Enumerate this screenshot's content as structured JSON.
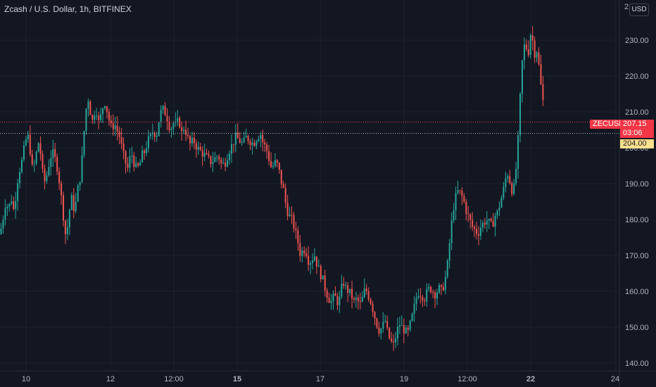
{
  "header": {
    "title": "Zcash / U.S. Dollar, 1h, BITFINEX",
    "currency_button": "USD",
    "top_axis_partial": "2"
  },
  "price_tags": {
    "symbol": "ZECUSD",
    "last_price": "207.15",
    "countdown": "03:06",
    "reference_price": "204.00"
  },
  "colors": {
    "background": "#131722",
    "up": "#26a69a",
    "down": "#ef5350",
    "grid": "#1e222d",
    "last_price_line": "#f23645",
    "reference_line": "#b2b5be"
  },
  "chart_data": {
    "type": "candlestick",
    "y_axis": {
      "ticks": [
        "140.00",
        "150.00",
        "160.00",
        "170.00",
        "180.00",
        "190.00",
        "200.00",
        "210.00",
        "220.00",
        "230.00"
      ],
      "range": [
        138.5,
        239.5
      ]
    },
    "x_axis": {
      "ticks": [
        {
          "label": "10",
          "bold": false
        },
        {
          "label": "12",
          "bold": false
        },
        {
          "label": "12:00",
          "bold": false
        },
        {
          "label": "15",
          "bold": true
        },
        {
          "label": "17",
          "bold": false
        },
        {
          "label": "19",
          "bold": false
        },
        {
          "label": "12:00",
          "bold": false
        },
        {
          "label": "22",
          "bold": true
        },
        {
          "label": "24",
          "bold": false
        }
      ]
    },
    "last_price": 207.15,
    "reference_price": 204.0,
    "series_path": [
      [
        0,
        176
      ],
      [
        4,
        180
      ],
      [
        8,
        185
      ],
      [
        12,
        183
      ],
      [
        16,
        186
      ],
      [
        20,
        182
      ],
      [
        24,
        190
      ],
      [
        28,
        194
      ],
      [
        32,
        197
      ],
      [
        36,
        202
      ],
      [
        40,
        203
      ],
      [
        43,
        199
      ],
      [
        46,
        194
      ],
      [
        50,
        196
      ],
      [
        54,
        202
      ],
      [
        58,
        198
      ],
      [
        62,
        190
      ],
      [
        66,
        192
      ],
      [
        70,
        196
      ],
      [
        74,
        199
      ],
      [
        78,
        197
      ],
      [
        82,
        194
      ],
      [
        86,
        188
      ],
      [
        90,
        181
      ],
      [
        93,
        176
      ],
      [
        96,
        178
      ],
      [
        99,
        183
      ],
      [
        102,
        186
      ],
      [
        106,
        182
      ],
      [
        110,
        188
      ],
      [
        114,
        192
      ],
      [
        117,
        198
      ],
      [
        120,
        206
      ],
      [
        123,
        212
      ],
      [
        126,
        214
      ],
      [
        129,
        209
      ],
      [
        132,
        207
      ],
      [
        135,
        211
      ],
      [
        138,
        210
      ],
      [
        141,
        206
      ],
      [
        144,
        210
      ],
      [
        147,
        212
      ],
      [
        150,
        213
      ],
      [
        153,
        209
      ],
      [
        156,
        207
      ],
      [
        159,
        205
      ],
      [
        162,
        207
      ],
      [
        166,
        205
      ],
      [
        170,
        203
      ],
      [
        174,
        199
      ],
      [
        178,
        196
      ],
      [
        182,
        194
      ],
      [
        186,
        199
      ],
      [
        190,
        196
      ],
      [
        194,
        194
      ],
      [
        198,
        195
      ],
      [
        202,
        198
      ],
      [
        206,
        199
      ],
      [
        210,
        202
      ],
      [
        214,
        203
      ],
      [
        218,
        205
      ],
      [
        222,
        203
      ],
      [
        226,
        208
      ],
      [
        230,
        211
      ],
      [
        234,
        210
      ],
      [
        238,
        208
      ],
      [
        242,
        205
      ],
      [
        246,
        207
      ],
      [
        250,
        206
      ],
      [
        254,
        208
      ],
      [
        258,
        204
      ],
      [
        262,
        206
      ],
      [
        266,
        203
      ],
      [
        270,
        201
      ],
      [
        275,
        202
      ],
      [
        280,
        200
      ],
      [
        285,
        199
      ],
      [
        290,
        198
      ],
      [
        295,
        197
      ],
      [
        300,
        196
      ],
      [
        305,
        197
      ],
      [
        310,
        198
      ],
      [
        315,
        195
      ],
      [
        320,
        196
      ],
      [
        325,
        199
      ],
      [
        330,
        201
      ],
      [
        335,
        203
      ],
      [
        340,
        202
      ],
      [
        345,
        201
      ],
      [
        350,
        203
      ],
      [
        355,
        202
      ],
      [
        360,
        201
      ],
      [
        365,
        203
      ],
      [
        370,
        204
      ],
      [
        374,
        201
      ],
      [
        378,
        200
      ],
      [
        382,
        197
      ],
      [
        386,
        194
      ],
      [
        390,
        196
      ],
      [
        395,
        195
      ],
      [
        399,
        191
      ],
      [
        403,
        188
      ],
      [
        407,
        183
      ],
      [
        411,
        181
      ],
      [
        415,
        180
      ],
      [
        419,
        177
      ],
      [
        423,
        174
      ],
      [
        427,
        170
      ],
      [
        431,
        172
      ],
      [
        435,
        171
      ],
      [
        439,
        168
      ],
      [
        443,
        169
      ],
      [
        447,
        170
      ],
      [
        451,
        167
      ],
      [
        455,
        165
      ],
      [
        459,
        163
      ],
      [
        463,
        160
      ],
      [
        467,
        158
      ],
      [
        471,
        157
      ],
      [
        475,
        159
      ],
      [
        479,
        157
      ],
      [
        483,
        158
      ],
      [
        487,
        163
      ],
      [
        491,
        161
      ],
      [
        495,
        160
      ],
      [
        499,
        159
      ],
      [
        503,
        157
      ],
      [
        507,
        158
      ],
      [
        511,
        156
      ],
      [
        515,
        158
      ],
      [
        519,
        161
      ],
      [
        523,
        159
      ],
      [
        527,
        157
      ],
      [
        531,
        154
      ],
      [
        535,
        151
      ],
      [
        539,
        149
      ],
      [
        543,
        150
      ],
      [
        547,
        152
      ],
      [
        551,
        148
      ],
      [
        555,
        146
      ],
      [
        559,
        145
      ],
      [
        563,
        148
      ],
      [
        567,
        151
      ],
      [
        571,
        150
      ],
      [
        575,
        149
      ],
      [
        579,
        148
      ],
      [
        583,
        151
      ],
      [
        587,
        154
      ],
      [
        591,
        158
      ],
      [
        595,
        160
      ],
      [
        599,
        159
      ],
      [
        603,
        158
      ],
      [
        607,
        160
      ],
      [
        611,
        161
      ],
      [
        615,
        160
      ],
      [
        619,
        159
      ],
      [
        623,
        161
      ],
      [
        627,
        160
      ],
      [
        631,
        162
      ],
      [
        635,
        166
      ],
      [
        638,
        172
      ],
      [
        641,
        178
      ],
      [
        644,
        183
      ],
      [
        647,
        186
      ],
      [
        651,
        188
      ],
      [
        655,
        187
      ],
      [
        659,
        185
      ],
      [
        663,
        182
      ],
      [
        667,
        180
      ],
      [
        671,
        178
      ],
      [
        675,
        177
      ],
      [
        679,
        176
      ],
      [
        683,
        178
      ],
      [
        687,
        179
      ],
      [
        691,
        180
      ],
      [
        695,
        179
      ],
      [
        699,
        178
      ],
      [
        703,
        181
      ],
      [
        707,
        182
      ],
      [
        711,
        185
      ],
      [
        715,
        188
      ],
      [
        719,
        192
      ],
      [
        722,
        193
      ],
      [
        725,
        190
      ],
      [
        729,
        187
      ],
      [
        732,
        192
      ],
      [
        735,
        198
      ],
      [
        738,
        210
      ],
      [
        741,
        222
      ],
      [
        744,
        228
      ],
      [
        747,
        229
      ],
      [
        750,
        225
      ],
      [
        753,
        232
      ],
      [
        756,
        231
      ],
      [
        759,
        226
      ],
      [
        762,
        228
      ],
      [
        765,
        224
      ],
      [
        768,
        218
      ],
      [
        771,
        214
      ],
      [
        774,
        207
      ]
    ]
  }
}
